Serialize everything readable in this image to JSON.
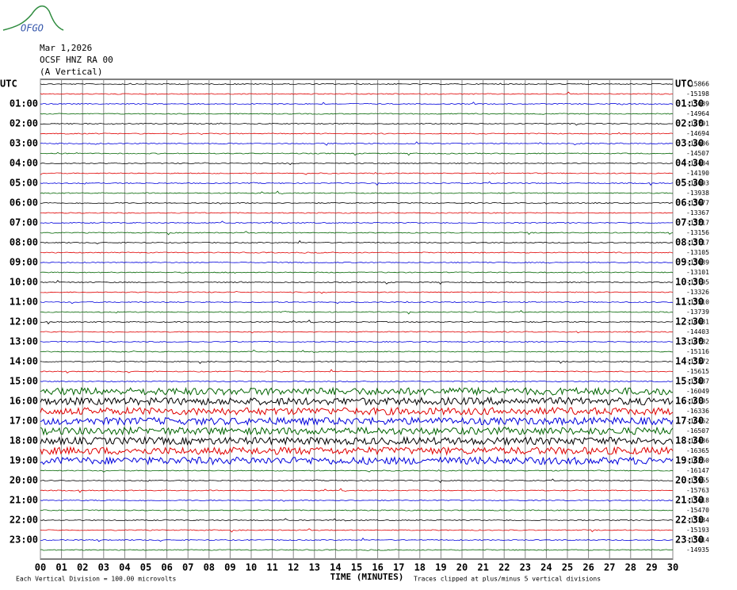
{
  "logo": "OFGO",
  "header": {
    "date": "Mar 1,2026",
    "station": "OCSF HNZ RA 00",
    "component": "(A Vertical)"
  },
  "left_labels": [
    "UTC",
    "01:00",
    "02:00",
    "03:00",
    "04:00",
    "05:00",
    "06:00",
    "07:00",
    "08:00",
    "09:00",
    "10:00",
    "11:00",
    "12:00",
    "13:00",
    "14:00",
    "15:00",
    "16:00",
    "17:00",
    "18:00",
    "19:00",
    "20:00",
    "21:00",
    "22:00",
    "23:00"
  ],
  "right_labels": [
    "UTC",
    "01:30",
    "02:30",
    "03:30",
    "04:30",
    "05:30",
    "06:30",
    "07:30",
    "08:30",
    "09:30",
    "10:30",
    "11:30",
    "12:30",
    "13:30",
    "14:30",
    "15:30",
    "16:30",
    "17:30",
    "18:30",
    "19:30",
    "20:30",
    "21:30",
    "22:30",
    "23:30"
  ],
  "row_offsets": [
    "-15866",
    "-15198",
    "-15089",
    "-14964",
    "-14791",
    "-14694",
    "-14606",
    "-14507",
    "-14404",
    "-14190",
    "-14093",
    "-13938",
    "-13677",
    "-13367",
    "-13217",
    "-13156",
    "-13117",
    "-13105",
    "-13089",
    "-13101",
    "-13195",
    "-13326",
    "-13510",
    "-13739",
    "-14031",
    "-14403",
    "-14782",
    "-15116",
    "-15372",
    "-15615",
    "-15837",
    "-16049",
    "-16195",
    "-16336",
    "-16462",
    "-16507",
    "-16436",
    "-16365",
    "-16260",
    "-16147",
    "-15955",
    "-15763",
    "-15618",
    "-15470",
    "-15334",
    "-15193",
    "-15014",
    "-14935"
  ],
  "x_ticks": [
    "00",
    "01",
    "02",
    "03",
    "04",
    "05",
    "06",
    "07",
    "08",
    "09",
    "10",
    "11",
    "12",
    "13",
    "14",
    "15",
    "16",
    "17",
    "18",
    "19",
    "20",
    "21",
    "22",
    "23",
    "24",
    "25",
    "26",
    "27",
    "28",
    "29",
    "30"
  ],
  "footer": {
    "scale": "Each Vertical Division =  100.00 microvolts",
    "x_label": "TIME (MINUTES)",
    "clip_note": "Traces clipped at plus/minus 5 vertical divisions"
  }
}
